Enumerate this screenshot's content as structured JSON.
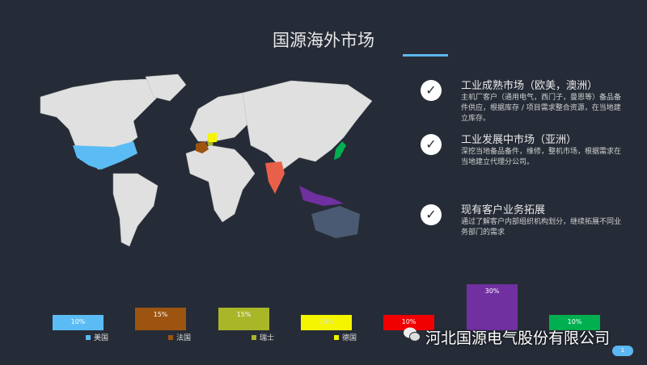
{
  "title": "国源海外市场",
  "items": [
    {
      "heading": "工业成熟市场（欧美，澳洲）",
      "body": "主机厂客户（通用电气，西门子，曼恩等）备品备件供应，根据库存 / 项目需求整合资源，在当地建立库存。",
      "icon": "check-icon"
    },
    {
      "heading": "工业发展中市场（亚洲）",
      "body": "深挖当地备品备件，维修，整机市场，根据需求在当地建立代理分公司。",
      "icon": "check-icon"
    },
    {
      "heading": "现有客户业务拓展",
      "body": "通过了解客户内部组织机构划分，继续拓展不同业务部门的需求",
      "icon": "check-icon"
    }
  ],
  "chart_data": {
    "type": "bar",
    "categories": [
      "美国",
      "法国",
      "瑞士",
      "德国",
      "",
      "",
      ""
    ],
    "values": [
      10,
      15,
      15,
      10,
      10,
      30,
      10
    ],
    "labels": [
      "10%",
      "15%",
      "15%",
      "10%",
      "10%",
      "30%",
      "10%"
    ],
    "colors": [
      "#5bbcf5",
      "#9c5410",
      "#a8b628",
      "#f5f500",
      "#f00000",
      "#7030a0",
      "#00b050"
    ]
  },
  "map_colors": {
    "usa": "#5bbcf5",
    "france": "#9c5410",
    "switzerland": "#a8b628",
    "germany": "#f5f500",
    "india": "#e8604a",
    "southeast_asia": "#7030a0",
    "japan": "#00b050",
    "australia": "#4a5a72",
    "land": "#e0e0e0"
  },
  "watermark": "河北国源电气股份有限公司",
  "page_number": "1"
}
